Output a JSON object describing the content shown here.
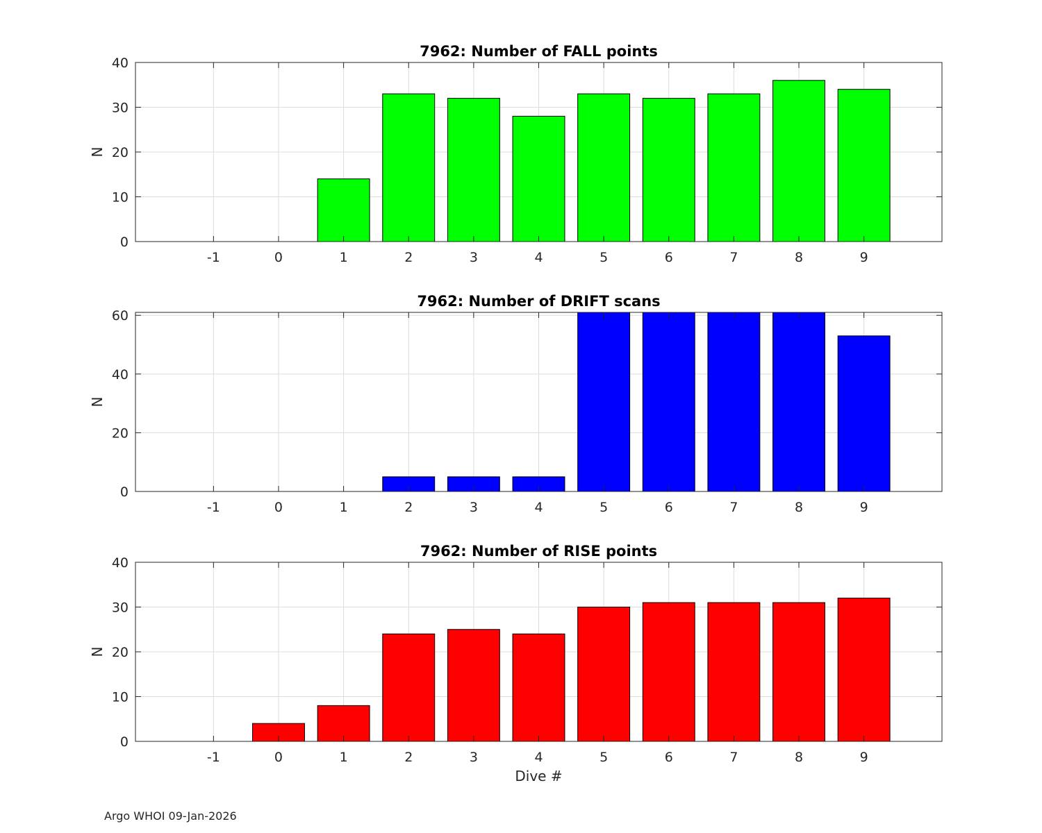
{
  "footer": "Argo WHOI 09-Jan-2026",
  "chart_data": [
    {
      "type": "bar",
      "title": "7962: Number of FALL points",
      "xlabel": "",
      "ylabel": "N",
      "categories": [
        "-1",
        "0",
        "1",
        "2",
        "3",
        "4",
        "5",
        "6",
        "7",
        "8",
        "9"
      ],
      "x": [
        -1,
        0,
        1,
        2,
        3,
        4,
        5,
        6,
        7,
        8,
        9
      ],
      "values": [
        0,
        0,
        14,
        33,
        32,
        28,
        33,
        32,
        33,
        36,
        34
      ],
      "ylim": [
        0,
        40
      ],
      "yticks": [
        0,
        10,
        20,
        30,
        40
      ],
      "xlim": [
        -2.2,
        10.2
      ],
      "grid": true,
      "color": "#00ff00"
    },
    {
      "type": "bar",
      "title": "7962: Number of DRIFT scans",
      "xlabel": "",
      "ylabel": "N",
      "categories": [
        "-1",
        "0",
        "1",
        "2",
        "3",
        "4",
        "5",
        "6",
        "7",
        "8",
        "9"
      ],
      "x": [
        -1,
        0,
        1,
        2,
        3,
        4,
        5,
        6,
        7,
        8,
        9
      ],
      "values": [
        0,
        0,
        0,
        5,
        5,
        5,
        61,
        61,
        61,
        61,
        53
      ],
      "ylim": [
        0,
        61
      ],
      "yticks": [
        0,
        20,
        40,
        60
      ],
      "xlim": [
        -2.2,
        10.2
      ],
      "grid": true,
      "color": "#0000ff"
    },
    {
      "type": "bar",
      "title": "7962: Number of RISE points",
      "xlabel": "Dive #",
      "ylabel": "N",
      "categories": [
        "-1",
        "0",
        "1",
        "2",
        "3",
        "4",
        "5",
        "6",
        "7",
        "8",
        "9"
      ],
      "x": [
        -1,
        0,
        1,
        2,
        3,
        4,
        5,
        6,
        7,
        8,
        9
      ],
      "values": [
        0,
        4,
        8,
        24,
        25,
        24,
        30,
        31,
        31,
        31,
        32
      ],
      "ylim": [
        0,
        40
      ],
      "yticks": [
        0,
        10,
        20,
        30,
        40
      ],
      "xlim": [
        -2.2,
        10.2
      ],
      "grid": true,
      "color": "#ff0000"
    }
  ]
}
